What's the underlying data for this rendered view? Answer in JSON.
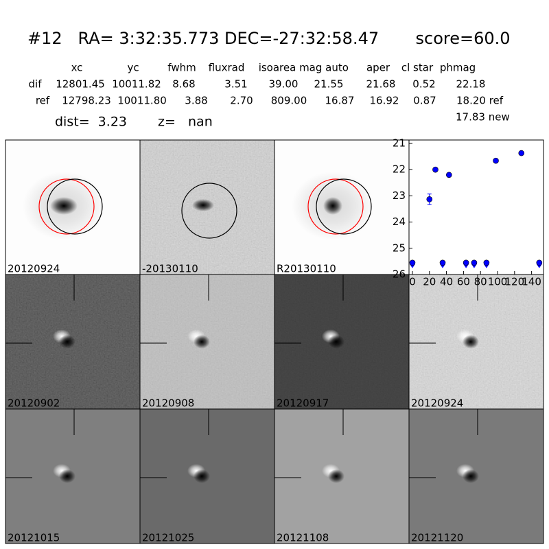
{
  "header": {
    "title": "#12   RA= 3:32:35.773 DEC=-27:32:58.47       score=60.0"
  },
  "table": {
    "columns": [
      "xc",
      "yc",
      "fwhm",
      "fluxrad",
      "isoarea",
      "mag auto",
      "aper",
      "cl star",
      "phmag"
    ],
    "rows": [
      [
        "dif",
        "12801.45",
        "10011.82",
        "8.68",
        "3.51",
        "39.00",
        "21.55",
        "21.68",
        "0.52",
        "22.18"
      ],
      [
        "ref",
        "12798.23",
        "10011.80",
        "3.88",
        "2.70",
        "809.00",
        "16.87",
        "16.92",
        "0.87",
        "18.20 ref"
      ]
    ],
    "extra": "17.83 new"
  },
  "dist": "dist=  3.23",
  "z": "z=   nan",
  "panels": [
    {
      "label": "20120924"
    },
    {
      "label": "-20130110"
    },
    {
      "label": "R20130110"
    },
    {
      "label": "20120902"
    },
    {
      "label": "20120908"
    },
    {
      "label": "20120917"
    },
    {
      "label": "20120924",
      "color": "#ff0000"
    },
    {
      "label": "20121015"
    },
    {
      "label": "20121025"
    },
    {
      "label": "20121108"
    },
    {
      "label": "20121120"
    }
  ],
  "chart_data": {
    "type": "scatter",
    "series": [
      {
        "color": "#0000ff",
        "x": [
          20,
          27,
          43,
          98,
          128
        ],
        "values": [
          23.13,
          22.0,
          22.2,
          21.66,
          21.37
        ],
        "errors": [
          0.2,
          null,
          null,
          null,
          null
        ]
      },
      {
        "color": "#0000ff",
        "upper_limit": true,
        "x": [
          0,
          35.5,
          63,
          72.5,
          87,
          149
        ],
        "values": [
          25.55,
          25.55,
          25.55,
          25.55,
          25.55,
          25.55
        ]
      }
    ],
    "xlim": [
      -4,
      154
    ],
    "ylim": [
      26,
      20.87
    ],
    "y_inverted": true,
    "xticks": [
      0,
      20,
      40,
      60,
      80,
      100,
      120,
      140
    ],
    "yticks": [
      21,
      22,
      23,
      24,
      25,
      26
    ]
  }
}
